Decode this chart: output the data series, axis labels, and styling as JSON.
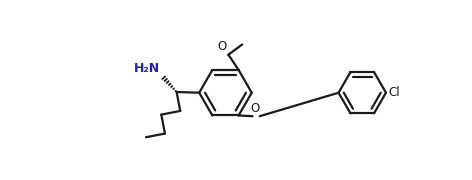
{
  "bg_color": "#ffffff",
  "line_color": "#1a1a1a",
  "line_width": 1.6,
  "label_fontsize": 8.5,
  "fig_width": 4.72,
  "fig_height": 1.8,
  "dpi": 100,
  "xlim": [
    0,
    10
  ],
  "ylim": [
    0,
    3.8
  ]
}
